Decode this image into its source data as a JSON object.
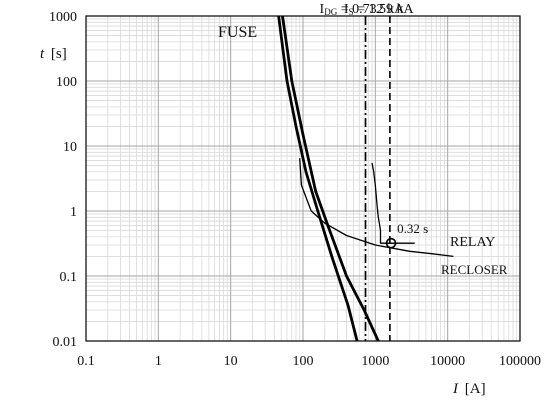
{
  "chart_data": {
    "type": "line",
    "xscale": "log",
    "yscale": "log",
    "xlim": [
      0.1,
      100000
    ],
    "ylim": [
      0.01,
      1000
    ],
    "grid": true,
    "xlabel": {
      "main": "I",
      "unit": "[A]"
    },
    "ylabel": {
      "main": "t",
      "unit": "[s]"
    },
    "x_ticks": [
      {
        "value": 0.1,
        "label": "0.1"
      },
      {
        "value": 1,
        "label": "1"
      },
      {
        "value": 10,
        "label": "10"
      },
      {
        "value": 100,
        "label": "100"
      },
      {
        "value": 1000,
        "label": "1000"
      },
      {
        "value": 10000,
        "label": "10000"
      },
      {
        "value": 100000,
        "label": "100000"
      }
    ],
    "y_ticks": [
      {
        "value": 0.01,
        "label": "0.01"
      },
      {
        "value": 0.1,
        "label": "0.1"
      },
      {
        "value": 1,
        "label": "1"
      },
      {
        "value": 10,
        "label": "10"
      },
      {
        "value": 100,
        "label": "100"
      },
      {
        "value": 1000,
        "label": "1000"
      }
    ],
    "vertical_lines": [
      {
        "name": "idg",
        "x": 732,
        "style": "dash-dot",
        "label_main": "I",
        "label_sub": "DG",
        "label_rest": " = 0.732 kA"
      },
      {
        "name": "is",
        "x": 1590,
        "style": "dashed",
        "label_main": "I",
        "label_sub": "S",
        "label_rest": " = 1.59 kA"
      }
    ],
    "series": [
      {
        "name": "FUSE",
        "width": "thick",
        "points": [
          [
            46,
            1000
          ],
          [
            60,
            100
          ],
          [
            80,
            20
          ],
          [
            110,
            4
          ],
          [
            160,
            1
          ],
          [
            250,
            0.2
          ],
          [
            420,
            0.035
          ],
          [
            560,
            0.01
          ]
        ]
      },
      {
        "width": "thick",
        "points": [
          [
            52,
            1000
          ],
          [
            70,
            100
          ],
          [
            100,
            15
          ],
          [
            150,
            2
          ],
          [
            220,
            0.6
          ],
          [
            400,
            0.1
          ],
          [
            700,
            0.03
          ],
          [
            1100,
            0.01
          ]
        ]
      },
      {
        "name": "RECLOSER",
        "width": "thin",
        "points": [
          [
            90,
            6.5
          ],
          [
            95,
            2.5
          ],
          [
            130,
            1.0
          ],
          [
            200,
            0.65
          ],
          [
            400,
            0.42
          ],
          [
            1000,
            0.3
          ],
          [
            3000,
            0.24
          ],
          [
            6000,
            0.22
          ],
          [
            12000,
            0.2
          ]
        ]
      },
      {
        "name": "RELAY",
        "width": "thin",
        "points": [
          [
            900,
            5.5
          ],
          [
            950,
            4.0
          ],
          [
            1000,
            2.5
          ],
          [
            1050,
            1.3
          ],
          [
            1100,
            0.8
          ],
          [
            1150,
            0.6
          ],
          [
            1180,
            0.5
          ],
          [
            1180,
            0.32
          ],
          [
            3500,
            0.32
          ]
        ]
      }
    ],
    "marker": {
      "x": 1650,
      "y": 0.32,
      "label": "0.32 s"
    },
    "labels": {
      "fuse": "FUSE",
      "relay": "RELAY",
      "recloser": "RECLOSER"
    }
  }
}
